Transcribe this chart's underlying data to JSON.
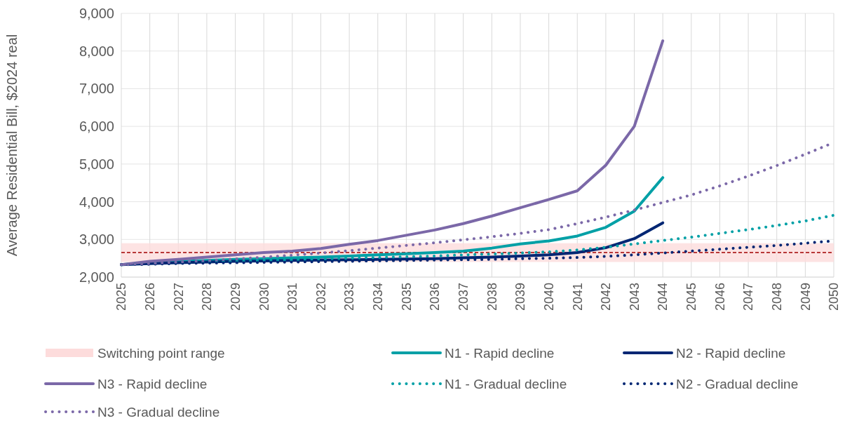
{
  "chart_data": {
    "type": "line",
    "ylabel": "Average Residential Bill, $2024 real",
    "categories": [
      "2025",
      "2026",
      "2027",
      "2028",
      "2029",
      "2030",
      "2031",
      "2032",
      "2033",
      "2034",
      "2035",
      "2036",
      "2037",
      "2038",
      "2039",
      "2040",
      "2041",
      "2042",
      "2043",
      "2044",
      "2045",
      "2046",
      "2047",
      "2048",
      "2049",
      "2050"
    ],
    "ylim": [
      2000,
      9000
    ],
    "yticks": [
      {
        "value": 2000,
        "label": "2,000"
      },
      {
        "value": 3000,
        "label": "3,000"
      },
      {
        "value": 4000,
        "label": "4,000"
      },
      {
        "value": 5000,
        "label": "5,000"
      },
      {
        "value": 6000,
        "label": "6,000"
      },
      {
        "value": 7000,
        "label": "7,000"
      },
      {
        "value": 8000,
        "label": "8,000"
      },
      {
        "value": 9000,
        "label": "9,000"
      }
    ],
    "grid": true,
    "legend": "bottom",
    "marker": "none",
    "bands": [
      {
        "axis": "y",
        "from": 2400,
        "to": 2900,
        "label": "Switching point range",
        "color": "#fddcdc"
      }
    ],
    "ref_lines": [
      {
        "axis": "y",
        "value": 2650,
        "color": "#a00000",
        "line_style": "dashed"
      }
    ],
    "series": [
      {
        "name": "N1 - Rapid decline",
        "color": "#00a0a6",
        "line_style": "solid",
        "values": [
          2330,
          2380,
          2410,
          2440,
          2470,
          2490,
          2510,
          2530,
          2560,
          2590,
          2620,
          2650,
          2690,
          2770,
          2880,
          2960,
          3090,
          3320,
          3750,
          4640,
          null,
          null,
          null,
          null,
          null,
          null
        ]
      },
      {
        "name": "N2 - Rapid decline",
        "color": "#002673",
        "line_style": "solid",
        "values": [
          2330,
          2360,
          2380,
          2400,
          2420,
          2430,
          2440,
          2450,
          2460,
          2470,
          2480,
          2490,
          2510,
          2530,
          2560,
          2590,
          2650,
          2780,
          3020,
          3440,
          null,
          null,
          null,
          null,
          null,
          null
        ]
      },
      {
        "name": "N3 - Rapid decline",
        "color": "#7b68a8",
        "line_style": "solid",
        "values": [
          2330,
          2420,
          2470,
          2530,
          2590,
          2650,
          2690,
          2760,
          2870,
          2970,
          3110,
          3250,
          3420,
          3620,
          3840,
          4060,
          4290,
          4970,
          6000,
          8270,
          null,
          null,
          null,
          null,
          null,
          null
        ]
      },
      {
        "name": "N1 - Gradual decline",
        "color": "#00a0a6",
        "line_style": "dotted",
        "values": [
          2330,
          2360,
          2380,
          2400,
          2420,
          2440,
          2460,
          2480,
          2500,
          2520,
          2540,
          2560,
          2590,
          2610,
          2640,
          2670,
          2720,
          2790,
          2880,
          2970,
          3060,
          3160,
          3260,
          3370,
          3490,
          3640
        ]
      },
      {
        "name": "N2 - Gradual decline",
        "color": "#002673",
        "line_style": "dotted",
        "values": [
          2330,
          2340,
          2360,
          2370,
          2380,
          2390,
          2400,
          2410,
          2420,
          2430,
          2440,
          2450,
          2460,
          2470,
          2490,
          2500,
          2520,
          2550,
          2590,
          2640,
          2690,
          2740,
          2790,
          2840,
          2900,
          2960
        ]
      },
      {
        "name": "N3 - Gradual decline",
        "color": "#7b68a8",
        "line_style": "dotted",
        "values": [
          2330,
          2360,
          2400,
          2440,
          2480,
          2530,
          2580,
          2640,
          2700,
          2770,
          2840,
          2910,
          2990,
          3070,
          3160,
          3260,
          3420,
          3590,
          3780,
          3980,
          4180,
          4420,
          4680,
          4960,
          5260,
          5570
        ]
      }
    ]
  }
}
